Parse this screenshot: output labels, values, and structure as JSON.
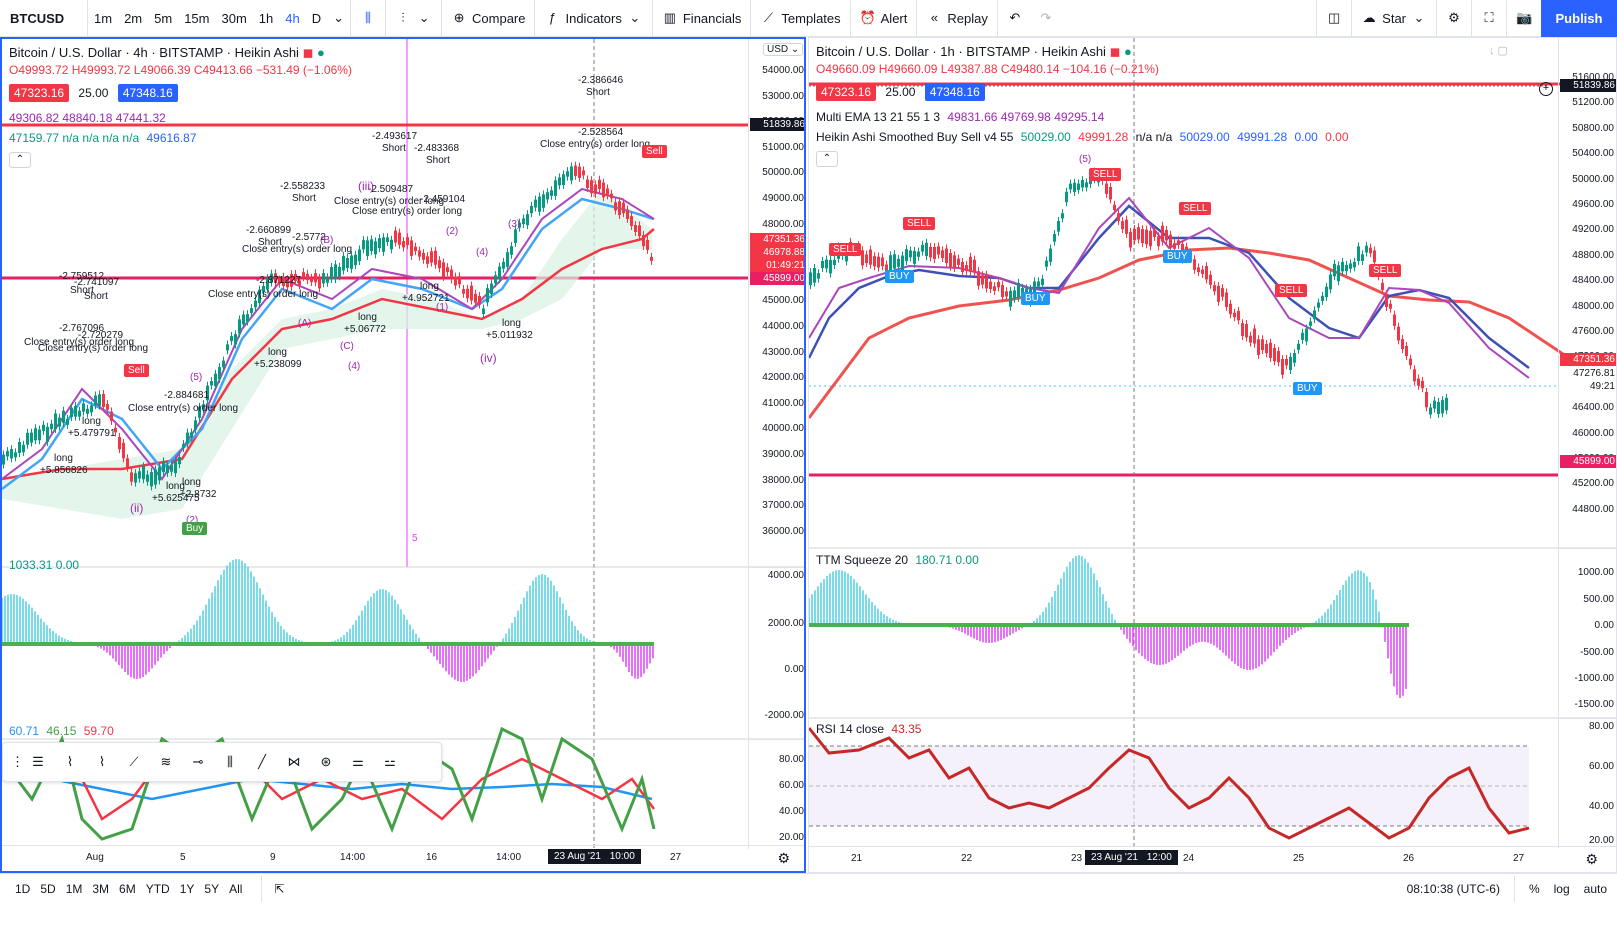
{
  "topbar": {
    "symbol": "BTCUSD",
    "timeframes": [
      "1m",
      "2m",
      "5m",
      "15m",
      "30m",
      "1h",
      "4h",
      "D"
    ],
    "active_timeframe": "4h",
    "compare": "Compare",
    "indicators": "Indicators",
    "financials": "Financials",
    "templates": "Templates",
    "alert": "Alert",
    "replay": "Replay",
    "star": "Star",
    "publish": "Publish"
  },
  "left": {
    "title": "Bitcoin / U.S. Dollar · 4h · BITSTAMP · Heikin Ashi",
    "ohlc": "O49993.72 H49993.72 L49066.39 C49413.66 −531.49 (−1.06%)",
    "bid": "47323.16",
    "spread": "25.00",
    "ask": "47348.16",
    "ind1": "49306.82  48840.18  47441.32",
    "ind2": "47159.77  n/a  n/a  n/a  n/a",
    "ind2b": "49616.87",
    "currency": "USD",
    "price_ticks": [
      "54000.00",
      "53000.00",
      "52000.00",
      "51000.00",
      "50000.00",
      "49000.00",
      "48000.00",
      "47000.00",
      "46000.00",
      "45000.00",
      "44000.00",
      "43000.00",
      "42000.00",
      "41000.00",
      "40000.00",
      "39000.00",
      "38000.00",
      "37000.00",
      "36000.00"
    ],
    "price_labels": {
      "top_line": "51839.86",
      "current": "47351.36",
      "current2": "46978.88",
      "countdown": "01:49:21",
      "support": "45899.00"
    },
    "osc_label": "1033.31  0.00",
    "osc_ticks": [
      "4000.00",
      "2000.00",
      "0.00",
      "-2000.00"
    ],
    "rsi_label": [
      "60.71",
      "46.15",
      "59.70"
    ],
    "rsi_ticks": [
      "80.00",
      "60.00",
      "40.00",
      "20.00"
    ],
    "time_ticks": [
      "Aug",
      "5",
      "9",
      "14:00",
      "16",
      "14:00",
      "23 Aug '21",
      "10:00",
      "27"
    ],
    "annotations": [
      "-2.386646",
      "Short",
      "-2.528564",
      "Close entry(s) order long",
      "-2.493617",
      "Short",
      "-2.483368",
      "Short",
      "-2.558233",
      "Short",
      "-2.509487",
      "Close entry(s) order long",
      "-2.459104",
      "Close entry(s) order long",
      "-2.660899",
      "Short",
      "-2.5772",
      "Close entry(s) order long",
      "-2.759512",
      "-2.741097",
      "Short",
      "Short",
      "-2.871227",
      "Close entry(s) order long",
      "-2.767096",
      "-2.720279",
      "Close entry(s) order long",
      "Close entry(s) order long",
      "long",
      "+4.952721",
      "+5.06772",
      "long",
      "+5.238099",
      "long",
      "+5.011932",
      "long",
      "-2.884681",
      "Close entry(s) order long",
      "long",
      "+5.479791",
      "long",
      "+5.856826",
      "long",
      "+5.625475",
      "long",
      "+2.8732"
    ],
    "signals": [
      "Sell",
      "Sell",
      "Buy"
    ],
    "waves": [
      "(ii)",
      "(iii)",
      "(iv)",
      "(1)",
      "(2)",
      "(3)",
      "(4)",
      "(5)",
      "(A)",
      "(B)",
      "(C)",
      "(2)",
      "(4)",
      "5"
    ]
  },
  "right": {
    "title": "Bitcoin / U.S. Dollar · 1h · BITSTAMP · Heikin Ashi",
    "ohlc": "O49660.09 H49660.09 L49387.88 C49480.14 −104.16 (−0.21%)",
    "bid": "47323.16",
    "spread": "25.00",
    "ask": "47348.16",
    "ema_name": "Multi EMA 13 21 55 1 3",
    "ema_vals": "49831.66  49769.98  49295.14",
    "ha_name": "Heikin Ashi Smoothed Buy Sell v4 55",
    "ha_vals1": "50029.00",
    "ha_vals2": "49991.28",
    "ha_vals3": "n/a  n/a",
    "ha_vals4": "50029.00",
    "ha_vals5": "49991.28",
    "ha_vals6": "0.00",
    "ha_vals7": "0.00",
    "price_ticks": [
      "51600.00",
      "51200.00",
      "50800.00",
      "50400.00",
      "50000.00",
      "49600.00",
      "49200.00",
      "48800.00",
      "48400.00",
      "48000.00",
      "47600.00",
      "47200.00",
      "46800.00",
      "46400.00",
      "46000.00",
      "45600.00",
      "45200.00",
      "44800.00"
    ],
    "price_labels": {
      "top_line": "51839.86",
      "current": "47351.36",
      "current2": "47276.81",
      "countdown": "49:21",
      "support": "45899.00"
    },
    "ttm_label": "TTM Squeeze 20",
    "ttm_vals": "180.71  0.00",
    "ttm_ticks": [
      "1000.00",
      "500.00",
      "0.00",
      "-500.00",
      "-1000.00",
      "-1500.00"
    ],
    "rsi_label": "RSI 14 close",
    "rsi_val": "43.35",
    "rsi_ticks": [
      "80.00",
      "60.00",
      "40.00",
      "20.00"
    ],
    "time_ticks": [
      "21",
      "22",
      "23",
      "23 Aug '21",
      "12:00",
      "24",
      "25",
      "26",
      "27"
    ],
    "signals": [
      "SELL",
      "SELL",
      "BUY",
      "SELL",
      "BUY",
      "SELL",
      "BUY",
      "SELL",
      "BUY",
      "SELL",
      "(5)"
    ]
  },
  "bottom": {
    "ranges": [
      "1D",
      "5D",
      "1M",
      "3M",
      "6M",
      "YTD",
      "1Y",
      "5Y",
      "All"
    ],
    "clock": "08:10:38 (UTC-6)",
    "percent": "%",
    "log": "log",
    "auto": "auto"
  },
  "colors": {
    "accent": "#2962ff",
    "red": "#f23645",
    "green": "#089981",
    "support": "#e91e63"
  }
}
